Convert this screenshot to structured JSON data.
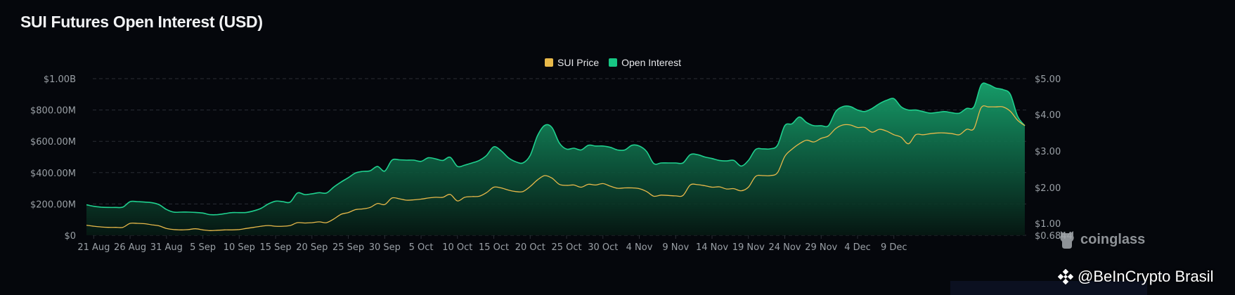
{
  "header": {
    "title": "SUI Futures Open Interest (USD)"
  },
  "legend": [
    {
      "label": "SUI Price",
      "color": "#e8b94a"
    },
    {
      "label": "Open Interest",
      "color": "#17c784"
    }
  ],
  "watermark": {
    "label": "coinglass"
  },
  "credit": {
    "label": "@BeInCrypto Brasil"
  },
  "chart_data": {
    "type": "area",
    "title": "SUI Futures Open Interest (USD)",
    "xlabel": "",
    "ylabel_left": "Open Interest (USD)",
    "ylabel_right": "SUI Price (USD)",
    "legend_position": "top-center",
    "grid": true,
    "x_ticks": [
      "21 Aug",
      "26 Aug",
      "31 Aug",
      "5 Sep",
      "10 Sep",
      "15 Sep",
      "20 Sep",
      "25 Sep",
      "30 Sep",
      "5 Oct",
      "10 Oct",
      "15 Oct",
      "20 Oct",
      "25 Oct",
      "30 Oct",
      "4 Nov",
      "9 Nov",
      "14 Nov",
      "19 Nov",
      "24 Nov",
      "29 Nov",
      "4 Dec",
      "9 Dec"
    ],
    "y_left_ticks": [
      "$0",
      "$200.00M",
      "$400.00M",
      "$600.00M",
      "$800.00M",
      "$1.00B"
    ],
    "y_left_range": [
      0,
      1000
    ],
    "y_right_ticks": [
      "$0.6844",
      "$1.00",
      "$2.00",
      "$3.00",
      "$4.00",
      "$5.00"
    ],
    "y_right_range": [
      0.6844,
      5.0
    ],
    "x_day_range": [
      0,
      114
    ],
    "series": [
      {
        "name": "Open Interest",
        "unit": "USD millions",
        "axis": "left",
        "color": "#17c784",
        "points": [
          [
            0,
            195
          ],
          [
            1,
            185
          ],
          [
            2,
            180
          ],
          [
            3,
            178
          ],
          [
            4,
            178
          ],
          [
            5,
            180
          ],
          [
            6,
            215
          ],
          [
            7,
            215
          ],
          [
            8,
            212
          ],
          [
            9,
            208
          ],
          [
            10,
            195
          ],
          [
            11,
            165
          ],
          [
            12,
            148
          ],
          [
            13,
            148
          ],
          [
            14,
            148
          ],
          [
            15,
            146
          ],
          [
            16,
            142
          ],
          [
            17,
            132
          ],
          [
            18,
            132
          ],
          [
            19,
            138
          ],
          [
            20,
            145
          ],
          [
            21,
            145
          ],
          [
            22,
            146
          ],
          [
            23,
            156
          ],
          [
            24,
            172
          ],
          [
            25,
            200
          ],
          [
            26,
            218
          ],
          [
            27,
            215
          ],
          [
            28,
            212
          ],
          [
            29,
            270
          ],
          [
            30,
            260
          ],
          [
            31,
            265
          ],
          [
            32,
            272
          ],
          [
            33,
            270
          ],
          [
            34,
            308
          ],
          [
            35,
            340
          ],
          [
            36,
            368
          ],
          [
            37,
            398
          ],
          [
            38,
            408
          ],
          [
            39,
            412
          ],
          [
            40,
            440
          ],
          [
            41,
            410
          ],
          [
            42,
            480
          ],
          [
            43,
            482
          ],
          [
            44,
            480
          ],
          [
            45,
            480
          ],
          [
            46,
            472
          ],
          [
            47,
            495
          ],
          [
            48,
            488
          ],
          [
            49,
            478
          ],
          [
            50,
            498
          ],
          [
            51,
            440
          ],
          [
            52,
            448
          ],
          [
            53,
            462
          ],
          [
            54,
            478
          ],
          [
            55,
            510
          ],
          [
            56,
            565
          ],
          [
            57,
            540
          ],
          [
            58,
            495
          ],
          [
            59,
            470
          ],
          [
            60,
            462
          ],
          [
            61,
            510
          ],
          [
            62,
            635
          ],
          [
            63,
            702
          ],
          [
            64,
            688
          ],
          [
            65,
            590
          ],
          [
            66,
            550
          ],
          [
            67,
            556
          ],
          [
            68,
            545
          ],
          [
            69,
            575
          ],
          [
            70,
            570
          ],
          [
            71,
            570
          ],
          [
            72,
            562
          ],
          [
            73,
            545
          ],
          [
            74,
            545
          ],
          [
            75,
            575
          ],
          [
            76,
            570
          ],
          [
            77,
            535
          ],
          [
            78,
            458
          ],
          [
            79,
            462
          ],
          [
            80,
            462
          ],
          [
            81,
            462
          ],
          [
            82,
            462
          ],
          [
            83,
            515
          ],
          [
            84,
            515
          ],
          [
            85,
            500
          ],
          [
            86,
            490
          ],
          [
            87,
            478
          ],
          [
            88,
            475
          ],
          [
            89,
            478
          ],
          [
            90,
            442
          ],
          [
            91,
            478
          ],
          [
            92,
            548
          ],
          [
            93,
            552
          ],
          [
            94,
            552
          ],
          [
            95,
            575
          ],
          [
            96,
            700
          ],
          [
            97,
            712
          ],
          [
            98,
            755
          ],
          [
            99,
            720
          ],
          [
            100,
            700
          ],
          [
            101,
            700
          ],
          [
            102,
            700
          ],
          [
            103,
            790
          ],
          [
            104,
            822
          ],
          [
            105,
            822
          ],
          [
            106,
            800
          ],
          [
            107,
            790
          ],
          [
            108,
            810
          ],
          [
            109,
            840
          ],
          [
            110,
            862
          ],
          [
            111,
            872
          ],
          [
            112,
            820
          ],
          [
            113,
            800
          ],
          [
            114,
            800
          ],
          [
            115,
            790
          ],
          [
            116,
            780
          ],
          [
            117,
            785
          ],
          [
            118,
            790
          ],
          [
            119,
            782
          ],
          [
            120,
            780
          ],
          [
            121,
            810
          ],
          [
            122,
            820
          ],
          [
            123,
            960
          ],
          [
            124,
            962
          ],
          [
            125,
            940
          ],
          [
            126,
            930
          ],
          [
            127,
            900
          ],
          [
            128,
            760
          ],
          [
            129,
            700
          ]
        ]
      },
      {
        "name": "SUI Price",
        "unit": "USD",
        "axis": "right",
        "color": "#e8b94a",
        "points": [
          [
            0,
            0.95
          ],
          [
            1,
            0.92
          ],
          [
            2,
            0.9
          ],
          [
            3,
            0.89
          ],
          [
            4,
            0.89
          ],
          [
            5,
            0.89
          ],
          [
            6,
            1.0
          ],
          [
            7,
            1.0
          ],
          [
            8,
            0.99
          ],
          [
            9,
            0.96
          ],
          [
            10,
            0.93
          ],
          [
            11,
            0.86
          ],
          [
            12,
            0.83
          ],
          [
            13,
            0.82
          ],
          [
            14,
            0.83
          ],
          [
            15,
            0.85
          ],
          [
            16,
            0.82
          ],
          [
            17,
            0.8
          ],
          [
            18,
            0.81
          ],
          [
            19,
            0.82
          ],
          [
            20,
            0.82
          ],
          [
            21,
            0.83
          ],
          [
            22,
            0.86
          ],
          [
            23,
            0.89
          ],
          [
            24,
            0.92
          ],
          [
            25,
            0.94
          ],
          [
            26,
            0.92
          ],
          [
            27,
            0.92
          ],
          [
            28,
            0.94
          ],
          [
            29,
            1.02
          ],
          [
            30,
            1.01
          ],
          [
            31,
            1.02
          ],
          [
            32,
            1.04
          ],
          [
            33,
            1.02
          ],
          [
            34,
            1.12
          ],
          [
            35,
            1.25
          ],
          [
            36,
            1.3
          ],
          [
            37,
            1.38
          ],
          [
            38,
            1.4
          ],
          [
            39,
            1.44
          ],
          [
            40,
            1.55
          ],
          [
            41,
            1.52
          ],
          [
            42,
            1.7
          ],
          [
            43,
            1.68
          ],
          [
            44,
            1.64
          ],
          [
            45,
            1.65
          ],
          [
            46,
            1.67
          ],
          [
            47,
            1.7
          ],
          [
            48,
            1.72
          ],
          [
            49,
            1.72
          ],
          [
            50,
            1.8
          ],
          [
            51,
            1.62
          ],
          [
            52,
            1.72
          ],
          [
            53,
            1.74
          ],
          [
            54,
            1.75
          ],
          [
            55,
            1.85
          ],
          [
            56,
            2.0
          ],
          [
            57,
            1.98
          ],
          [
            58,
            1.92
          ],
          [
            59,
            1.88
          ],
          [
            60,
            1.88
          ],
          [
            61,
            2.02
          ],
          [
            62,
            2.2
          ],
          [
            63,
            2.32
          ],
          [
            64,
            2.25
          ],
          [
            65,
            2.08
          ],
          [
            66,
            2.05
          ],
          [
            67,
            2.06
          ],
          [
            68,
            2.0
          ],
          [
            69,
            2.08
          ],
          [
            70,
            2.06
          ],
          [
            71,
            2.1
          ],
          [
            72,
            2.03
          ],
          [
            73,
            1.97
          ],
          [
            74,
            1.98
          ],
          [
            75,
            1.98
          ],
          [
            76,
            1.96
          ],
          [
            77,
            1.88
          ],
          [
            78,
            1.75
          ],
          [
            79,
            1.78
          ],
          [
            80,
            1.77
          ],
          [
            81,
            1.76
          ],
          [
            82,
            1.77
          ],
          [
            83,
            2.06
          ],
          [
            84,
            2.07
          ],
          [
            85,
            2.04
          ],
          [
            86,
            2.0
          ],
          [
            87,
            2.01
          ],
          [
            88,
            1.95
          ],
          [
            89,
            1.96
          ],
          [
            90,
            1.9
          ],
          [
            91,
            2.0
          ],
          [
            92,
            2.3
          ],
          [
            93,
            2.32
          ],
          [
            94,
            2.32
          ],
          [
            95,
            2.4
          ],
          [
            96,
            2.85
          ],
          [
            97,
            3.05
          ],
          [
            98,
            3.2
          ],
          [
            99,
            3.3
          ],
          [
            100,
            3.25
          ],
          [
            101,
            3.35
          ],
          [
            102,
            3.42
          ],
          [
            103,
            3.62
          ],
          [
            104,
            3.72
          ],
          [
            105,
            3.72
          ],
          [
            106,
            3.65
          ],
          [
            107,
            3.65
          ],
          [
            108,
            3.52
          ],
          [
            109,
            3.6
          ],
          [
            110,
            3.55
          ],
          [
            111,
            3.45
          ],
          [
            112,
            3.38
          ],
          [
            113,
            3.2
          ],
          [
            114,
            3.45
          ],
          [
            115,
            3.45
          ],
          [
            116,
            3.48
          ],
          [
            117,
            3.5
          ],
          [
            118,
            3.5
          ],
          [
            119,
            3.48
          ],
          [
            120,
            3.45
          ],
          [
            121,
            3.6
          ],
          [
            122,
            3.62
          ],
          [
            123,
            4.2
          ],
          [
            124,
            4.22
          ],
          [
            125,
            4.22
          ],
          [
            126,
            4.22
          ],
          [
            127,
            4.1
          ],
          [
            128,
            3.85
          ],
          [
            129,
            3.7
          ]
        ]
      }
    ]
  }
}
